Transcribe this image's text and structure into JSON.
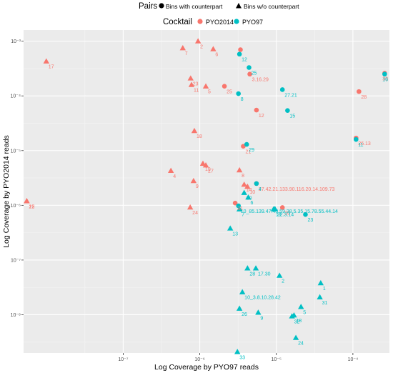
{
  "chart_data": {
    "type": "scatter",
    "xlabel": "Log Coverage by PYO97 reads",
    "ylabel": "Log Coverage by PYO2014 reads",
    "x_scale": "log10",
    "y_scale": "log10",
    "xlim": [
      5e-09,
      0.0003
    ],
    "ylim": [
      2e-09,
      0.0016
    ],
    "x_ticks": [
      {
        "value": 1e-07,
        "label": "10⁻⁷"
      },
      {
        "value": 1e-06,
        "label": "10⁻⁶"
      },
      {
        "value": 1e-05,
        "label": "10⁻⁵"
      },
      {
        "value": 0.0001,
        "label": "10⁻⁴"
      }
    ],
    "y_ticks": [
      {
        "value": 1e-08,
        "label": "10⁻⁸"
      },
      {
        "value": 1e-07,
        "label": "10⁻⁷"
      },
      {
        "value": 1e-06,
        "label": "10⁻⁶"
      },
      {
        "value": 1e-05,
        "label": "10⁻⁵"
      },
      {
        "value": 0.0001,
        "label": "10⁻⁴"
      },
      {
        "value": 0.001,
        "label": "10⁻³"
      }
    ],
    "grid": true,
    "legend": {
      "position": "top",
      "shape_title": "Pairs",
      "shape_entries": [
        {
          "shape": "circle",
          "label": "Bins with counterpart"
        },
        {
          "shape": "triangle",
          "label": "Bins w/o counterpart"
        }
      ],
      "color_title": "Cocktail",
      "color_entries": [
        {
          "name": "PYO2014",
          "color": "#F8766D"
        },
        {
          "name": "PYO97",
          "color": "#00BFC4"
        }
      ]
    },
    "series": [
      {
        "name": "PYO2014",
        "color": "#F8766D",
        "points": [
          {
            "x": 5.5e-09,
            "y": 1.2e-06,
            "shape": "triangle",
            "label": "15"
          },
          {
            "x": 5.5e-09,
            "y": 1.2e-06,
            "shape": "triangle",
            "label": "22"
          },
          {
            "x": 9.9e-09,
            "y": 0.00043,
            "shape": "triangle",
            "label": "17"
          },
          {
            "x": 6e-07,
            "y": 0.00075,
            "shape": "triangle",
            "label": "7"
          },
          {
            "x": 9.5e-07,
            "y": 0.001,
            "shape": "triangle",
            "label": "2"
          },
          {
            "x": 1.5e-06,
            "y": 0.00072,
            "shape": "triangle",
            "label": "6"
          },
          {
            "x": 7.6e-07,
            "y": 0.00021,
            "shape": "triangle",
            "label": "23"
          },
          {
            "x": 7.8e-07,
            "y": 0.00016,
            "shape": "triangle",
            "label": "11"
          },
          {
            "x": 1.2e-06,
            "y": 0.00015,
            "shape": "triangle",
            "label": "5"
          },
          {
            "x": 2.1e-06,
            "y": 0.00015,
            "shape": "circle",
            "label": "25"
          },
          {
            "x": 3.4e-06,
            "y": 0.0007,
            "shape": "circle",
            "label": ""
          },
          {
            "x": 4.5e-06,
            "y": 0.00025,
            "shape": "circle",
            "label": "3.16.29"
          },
          {
            "x": 5.5e-06,
            "y": 5.5e-05,
            "shape": "circle",
            "label": "12"
          },
          {
            "x": 0.00012,
            "y": 0.00012,
            "shape": "circle",
            "label": "28"
          },
          {
            "x": 0.00026,
            "y": 0.00026,
            "shape": "circle",
            "label": "30"
          },
          {
            "x": 0.00011,
            "y": 1.7e-05,
            "shape": "circle",
            "label": "26.13"
          },
          {
            "x": 8.5e-07,
            "y": 2.3e-05,
            "shape": "triangle",
            "label": "18"
          },
          {
            "x": 3.7e-06,
            "y": 1.2e-05,
            "shape": "circle",
            "label": "21"
          },
          {
            "x": 1.2e-06,
            "y": 5.4e-06,
            "shape": "triangle",
            "label": "27"
          },
          {
            "x": 1.1e-06,
            "y": 5.8e-06,
            "shape": "triangle",
            "label": "19"
          },
          {
            "x": 4.2e-07,
            "y": 4.3e-06,
            "shape": "triangle",
            "label": "4"
          },
          {
            "x": 8.3e-07,
            "y": 2.8e-06,
            "shape": "triangle",
            "label": "9"
          },
          {
            "x": 3.3e-06,
            "y": 4.4e-06,
            "shape": "triangle",
            "label": "8"
          },
          {
            "x": 4.2e-06,
            "y": 2.2e-06,
            "shape": "triangle",
            "label": "10"
          },
          {
            "x": 3.8e-06,
            "y": 2.4e-06,
            "shape": "triangle",
            "label": "14"
          },
          {
            "x": 5.5e-06,
            "y": 2.5e-06,
            "shape": "circle",
            "label": "27.42.21.133.90.116.20.14.109.73"
          },
          {
            "x": 2.9e-06,
            "y": 1.1e-06,
            "shape": "circle",
            "label": "31"
          },
          {
            "x": 7.5e-07,
            "y": 9.2e-07,
            "shape": "triangle",
            "label": "24"
          },
          {
            "x": 1.2e-05,
            "y": 9.1e-07,
            "shape": "circle",
            "label": "20"
          }
        ]
      },
      {
        "name": "PYO97",
        "color": "#00BFC4",
        "points": [
          {
            "x": 3.3e-06,
            "y": 0.00058,
            "shape": "circle",
            "label": "12"
          },
          {
            "x": 4.4e-06,
            "y": 0.00033,
            "shape": "circle",
            "label": "25"
          },
          {
            "x": 3.2e-06,
            "y": 0.00011,
            "shape": "circle",
            "label": "8"
          },
          {
            "x": 1.4e-05,
            "y": 5.4e-05,
            "shape": "circle",
            "label": "15"
          },
          {
            "x": 1.2e-05,
            "y": 0.00013,
            "shape": "circle",
            "label": "27.21"
          },
          {
            "x": 0.00026,
            "y": 0.00025,
            "shape": "circle",
            "label": "16"
          },
          {
            "x": 0.00011,
            "y": 1.6e-05,
            "shape": "circle",
            "label": "11"
          },
          {
            "x": 4.1e-06,
            "y": 1.3e-05,
            "shape": "circle",
            "label": "29"
          },
          {
            "x": 5.5e-06,
            "y": 2.5e-06,
            "shape": "circle",
            "label": "4"
          },
          {
            "x": 3.8e-06,
            "y": 1.7e-06,
            "shape": "triangle",
            "label": "20"
          },
          {
            "x": 4.3e-06,
            "y": 1.4e-06,
            "shape": "triangle",
            "label": "6"
          },
          {
            "x": 3.2e-06,
            "y": 9.8e-07,
            "shape": "circle",
            "label": "10_85.139.47.48.59.38.5.35.15.78.55.44.14"
          },
          {
            "x": 3.3e-06,
            "y": 8.5e-07,
            "shape": "triangle",
            "label": "7"
          },
          {
            "x": 9.2e-06,
            "y": 8.5e-07,
            "shape": "triangle",
            "label": "19"
          },
          {
            "x": 9.6e-06,
            "y": 8.6e-07,
            "shape": "triangle",
            "label": "22.3.14"
          },
          {
            "x": 2.4e-05,
            "y": 6.8e-07,
            "shape": "circle",
            "label": "23"
          },
          {
            "x": 2.5e-06,
            "y": 3.8e-07,
            "shape": "triangle",
            "label": "13"
          },
          {
            "x": 4.2e-06,
            "y": 7.1e-08,
            "shape": "triangle",
            "label": "28"
          },
          {
            "x": 5.4e-06,
            "y": 7.1e-08,
            "shape": "triangle",
            "label": "17.30"
          },
          {
            "x": 1.1e-05,
            "y": 5.2e-08,
            "shape": "triangle",
            "label": "2"
          },
          {
            "x": 3.8e-05,
            "y": 3.8e-08,
            "shape": "triangle",
            "label": "1"
          },
          {
            "x": 3.6e-06,
            "y": 2.6e-08,
            "shape": "triangle",
            "label": "10_3.8.10.28.42"
          },
          {
            "x": 3.3e-06,
            "y": 1.3e-08,
            "shape": "triangle",
            "label": "26"
          },
          {
            "x": 5.8e-06,
            "y": 1.1e-08,
            "shape": "triangle",
            "label": "9"
          },
          {
            "x": 3.7e-05,
            "y": 2.1e-08,
            "shape": "triangle",
            "label": "31"
          },
          {
            "x": 2.1e-05,
            "y": 1.4e-08,
            "shape": "triangle",
            "label": "5"
          },
          {
            "x": 1.7e-05,
            "y": 9.8e-09,
            "shape": "triangle",
            "label": "18"
          },
          {
            "x": 1.6e-05,
            "y": 9.4e-09,
            "shape": "triangle",
            "label": "32"
          },
          {
            "x": 1.8e-05,
            "y": 3.8e-09,
            "shape": "triangle",
            "label": "24"
          },
          {
            "x": 3.1e-06,
            "y": 2.1e-09,
            "shape": "triangle",
            "label": "33"
          }
        ]
      }
    ]
  }
}
